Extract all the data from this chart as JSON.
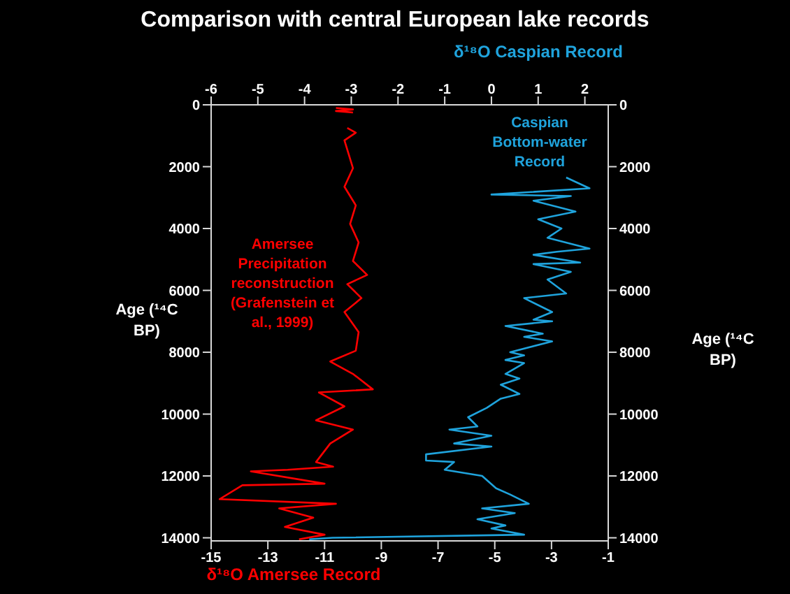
{
  "chart_data": {
    "type": "line",
    "title": "Comparison with central European lake records",
    "xlabel": "δ¹⁸O Amersee Record",
    "x2label": "δ¹⁸O Caspian Record",
    "ylabel": "Age (¹⁴C BP)",
    "y2label": "Age (¹⁴C BP)",
    "xlim": [
      -15,
      -1
    ],
    "xticks": [
      -15,
      -13,
      -11,
      -9,
      -7,
      -5,
      -3,
      -1
    ],
    "x2lim": [
      -6,
      2.5
    ],
    "x2ticks": [
      -6,
      -5,
      -4,
      -3,
      -2,
      -1,
      0,
      1,
      2
    ],
    "ylim": [
      14100,
      0
    ],
    "yticks": [
      0,
      2000,
      4000,
      6000,
      8000,
      10000,
      12000,
      14000
    ],
    "y2lim": [
      14100,
      0
    ],
    "y2ticks": [
      0,
      2000,
      4000,
      6000,
      8000,
      10000,
      12000,
      14000
    ],
    "grid": false,
    "legend": false,
    "series": [
      {
        "name": "Amersee Precipitation reconstruction (Grafenstein et al., 1999)",
        "color": "#ff0000",
        "x": [
          -10.6,
          -10.0,
          -10.6,
          -10.0,
          null,
          -10.2,
          -9.9,
          -10.3,
          -10.0,
          -10.3,
          -9.9,
          -10.1,
          -9.8,
          -10.0,
          -9.5,
          -10.2,
          -9.7,
          -10.3,
          -9.8,
          -9.9,
          -10.8,
          -10.0,
          -9.3,
          -11.2,
          -10.3,
          -11.3,
          -10.0,
          -10.8,
          -11.3,
          -10.7,
          -12.3,
          -13.6,
          -11.0,
          -13.9,
          -14.7,
          -10.6,
          -12.6,
          -11.4,
          -12.4,
          -11.0,
          -11.9
        ],
        "values": [
          100,
          150,
          200,
          250,
          null,
          750,
          900,
          1150,
          2050,
          2650,
          3250,
          3850,
          4450,
          5050,
          5500,
          5800,
          6250,
          6700,
          7350,
          7950,
          8300,
          8700,
          9200,
          9300,
          9750,
          10200,
          10500,
          10950,
          11550,
          11700,
          11800,
          11850,
          12250,
          12300,
          12750,
          12900,
          13050,
          13350,
          13650,
          13900,
          14050
        ]
      },
      {
        "name": "Caspian Bottom-water Record",
        "color": "#1fa3dc",
        "axis": "x2",
        "x": [
          1.6,
          2.1,
          0.0,
          1.7,
          0.9,
          1.8,
          1.0,
          1.5,
          1.2,
          2.1,
          1.4,
          0.9,
          1.9,
          0.9,
          1.7,
          1.2,
          1.6,
          0.7,
          1.3,
          0.9,
          1.3,
          0.3,
          1.1,
          0.7,
          1.3,
          0.4,
          0.7,
          0.3,
          0.7,
          0.3,
          0.6,
          0.2,
          0.6,
          0.2,
          -0.1,
          -0.5,
          -0.3,
          -0.9,
          0.0,
          -0.8,
          0.0,
          -1.4,
          -1.4,
          -0.8,
          -1.0,
          -0.2,
          0.1,
          0.4,
          0.8,
          -0.2,
          0.5,
          -0.3,
          0.3,
          0.0,
          0.7,
          -3.4,
          -3.9
        ],
        "values": [
          2350,
          2700,
          2900,
          2950,
          3100,
          3450,
          3700,
          4000,
          4300,
          4650,
          4750,
          4850,
          5100,
          5150,
          5400,
          5650,
          6100,
          6250,
          6700,
          6950,
          7000,
          7150,
          7400,
          7500,
          7650,
          8000,
          8100,
          8250,
          8350,
          8700,
          8850,
          9050,
          9350,
          9500,
          9800,
          10100,
          10400,
          10500,
          10700,
          10950,
          11050,
          11300,
          11500,
          11550,
          11800,
          12000,
          12400,
          12600,
          12900,
          13050,
          13200,
          13400,
          13600,
          13700,
          13900,
          14000,
          14050
        ]
      }
    ]
  }
}
